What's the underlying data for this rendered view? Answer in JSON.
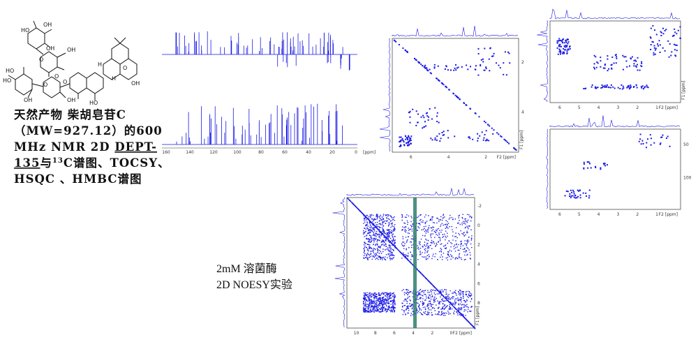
{
  "structure": {
    "labels": [
      "HO",
      "OH",
      "OH",
      "O",
      "OH",
      "HO",
      "HO",
      "OH",
      "O",
      "O",
      "O",
      "H",
      "H",
      "O",
      "OH",
      "HO",
      "OH"
    ]
  },
  "caption": {
    "line1": "天然产物 柴胡皂苷C",
    "line2": "（MW=927.12）的600",
    "line3a": "MHz NMR 2D ",
    "line3b": "DEPT-",
    "line4a": "135",
    "line4b": "与",
    "line4sup": "13",
    "line4c": "C谱图、TOCSY、",
    "line5": "HSQC 、HMBC谱图"
  },
  "carbon": {
    "ticks": [
      "160",
      "140",
      "120",
      "100",
      "80",
      "60",
      "40",
      "20",
      "0"
    ],
    "unit": "[ppm]"
  },
  "tocsy": {
    "x_ticks": [
      "6",
      "4",
      "2"
    ],
    "x_unit": "F2 [ppm]",
    "y_ticks": [
      "2",
      "4"
    ],
    "y_unit": "F1 [ppm]"
  },
  "hsqc": {
    "x_ticks": [
      "6",
      "5",
      "4",
      "3",
      "2",
      "1"
    ],
    "x_unit": "F2 [ppm]",
    "y_unit": "F1 [ppm]"
  },
  "hmbc": {
    "x_ticks": [
      "6",
      "5",
      "4",
      "3",
      "2",
      "1"
    ],
    "x_unit": "F2 [ppm]",
    "y_ticks": [
      "50",
      "100"
    ]
  },
  "noesy": {
    "label1": "2mM 溶菌酶",
    "label2": "2D NOESY实验",
    "x_ticks": [
      "10",
      "8",
      "6",
      "4",
      "2",
      "0"
    ],
    "x_unit": "F2 [ppm]",
    "y_ticks": [
      "-2",
      "0",
      "2",
      "4",
      "6",
      "8"
    ],
    "y_unit": "F1 [ppm]"
  }
}
